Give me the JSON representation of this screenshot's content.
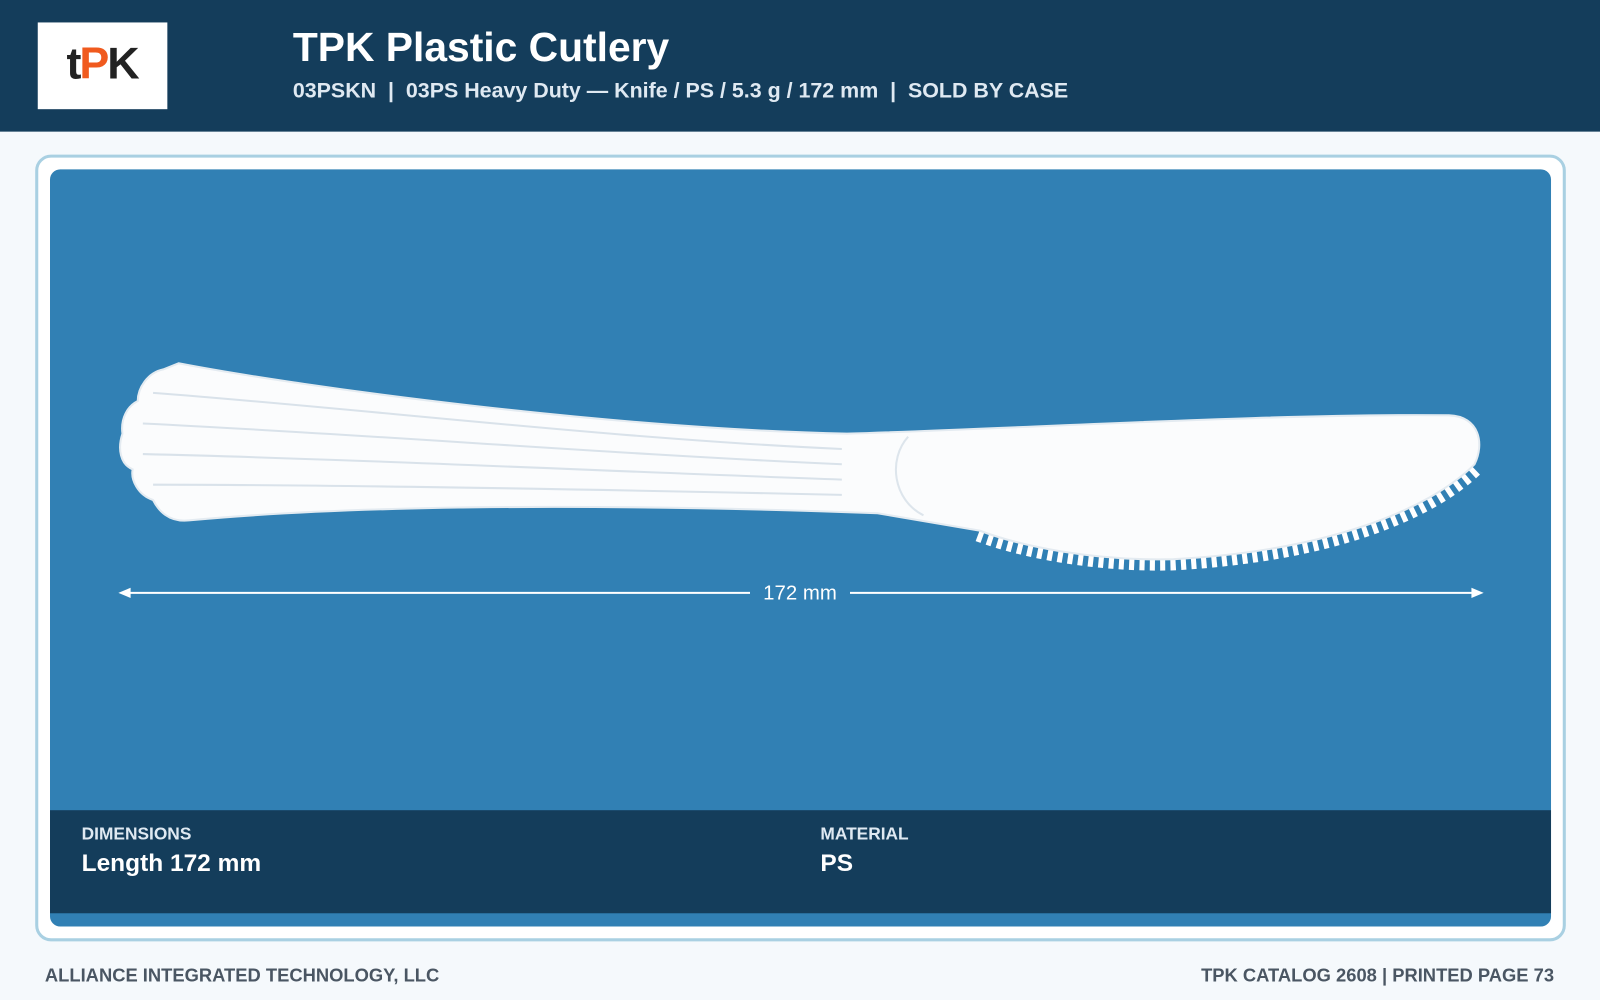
{
  "header": {
    "logo": [
      "t",
      "P",
      "K"
    ],
    "title": "TPK Plastic Cutlery",
    "subtitle": "03PSKN  |  03PS Heavy Duty — Knife / PS / 5.3 g / 172 mm  |  SOLD BY CASE"
  },
  "image": {
    "dimension_label": "172 mm"
  },
  "specs": [
    {
      "label": "DIMENSIONS",
      "value": "Length 172 mm"
    },
    {
      "label": "MATERIAL",
      "value": "PS"
    }
  ],
  "footer": {
    "left": "ALLIANCE INTEGRATED TECHNOLOGY, LLC",
    "right": "TPK CATALOG 2608 | PRINTED PAGE 73"
  }
}
